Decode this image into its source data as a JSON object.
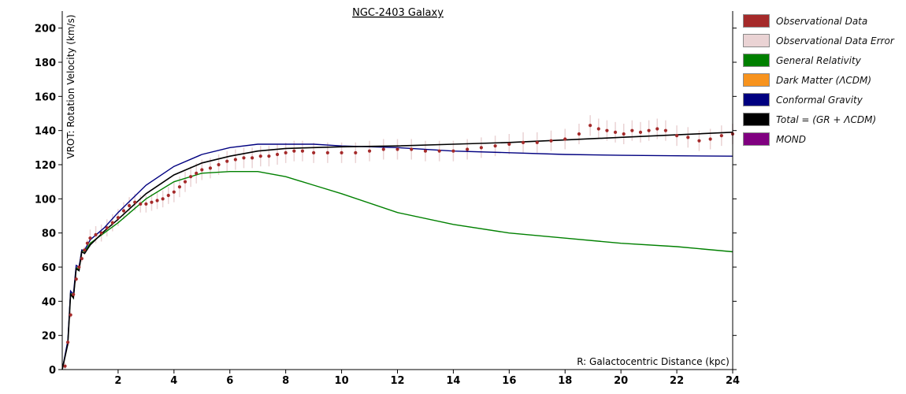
{
  "chart_data": {
    "type": "line",
    "title": "NGC-2403 Galaxy",
    "xlabel": "R: Galactocentric Distance (kpc)",
    "ylabel": "VROT: Rotation Velocity (km/s)",
    "xlim": [
      0,
      24
    ],
    "ylim": [
      0,
      210
    ],
    "xticks": [
      2,
      4,
      6,
      8,
      10,
      12,
      14,
      16,
      18,
      20,
      22,
      24
    ],
    "yticks": [
      0,
      20,
      40,
      60,
      80,
      100,
      120,
      140,
      160,
      180,
      200
    ],
    "grid": false,
    "legend_position": "right",
    "legend": [
      {
        "label": "Observational Data",
        "color": "#a52a2a"
      },
      {
        "label": "Observational Data Error",
        "color": "#ead3d4"
      },
      {
        "label": "General Relativity",
        "color": "#008000"
      },
      {
        "label": "Dark Matter (ΛCDM)",
        "color": "#f7931e"
      },
      {
        "label": "Conformal Gravity",
        "color": "#000080"
      },
      {
        "label": "Total = (GR + ΛCDM)",
        "color": "#000000"
      },
      {
        "label": "MOND",
        "color": "#800080"
      }
    ],
    "series": [
      {
        "name": "Observational Data",
        "color": "#a52a2a",
        "x": [
          0.1,
          0.2,
          0.3,
          0.4,
          0.5,
          0.6,
          0.7,
          0.8,
          0.9,
          1.0,
          1.2,
          1.4,
          1.6,
          1.8,
          2.0,
          2.2,
          2.4,
          2.6,
          2.8,
          3.0,
          3.2,
          3.4,
          3.6,
          3.8,
          4.0,
          4.2,
          4.4,
          4.6,
          4.8,
          5.0,
          5.3,
          5.6,
          5.9,
          6.2,
          6.5,
          6.8,
          7.1,
          7.4,
          7.7,
          8.0,
          8.3,
          8.6,
          9.0,
          9.5,
          10.0,
          10.5,
          11.0,
          11.5,
          12.0,
          12.5,
          13.0,
          13.5,
          14.0,
          14.5,
          15.0,
          15.5,
          16.0,
          16.5,
          17.0,
          17.5,
          18.0,
          18.5,
          18.9,
          19.2,
          19.5,
          19.8,
          20.1,
          20.4,
          20.7,
          21.0,
          21.3,
          21.6,
          22.0,
          22.4,
          22.8,
          23.2,
          23.6,
          24.0
        ],
        "values": [
          2,
          16,
          32,
          44,
          53,
          60,
          65,
          70,
          74,
          77,
          79,
          80,
          83,
          86,
          89,
          93,
          96,
          98,
          97,
          97,
          98,
          99,
          100,
          102,
          104,
          107,
          110,
          113,
          115,
          117,
          118,
          120,
          122,
          123,
          124,
          124,
          125,
          125,
          126,
          127,
          128,
          128,
          127,
          127,
          127,
          127,
          128,
          129,
          129,
          129,
          128,
          128,
          128,
          129,
          130,
          131,
          132,
          133,
          133,
          134,
          135,
          138,
          143,
          141,
          140,
          139,
          138,
          140,
          139,
          140,
          141,
          140,
          137,
          136,
          134,
          135,
          137,
          138
        ]
      },
      {
        "name": "General Relativity",
        "color": "#008000",
        "x": [
          0,
          0.2,
          0.3,
          0.4,
          0.5,
          0.6,
          0.7,
          0.8,
          1.0,
          1.5,
          2.0,
          3.0,
          4.0,
          5.0,
          6.0,
          6.5,
          7.0,
          8.0,
          9.0,
          10.0,
          12.0,
          14.0,
          16.0,
          18.0,
          20.0,
          22.0,
          24.0
        ],
        "values": [
          0,
          16,
          45,
          42,
          60,
          58,
          70,
          69,
          74,
          80,
          86,
          100,
          110,
          115,
          116,
          116,
          116,
          113,
          108,
          103,
          92,
          85,
          80,
          77,
          74,
          72,
          69
        ]
      },
      {
        "name": "Conformal Gravity",
        "color": "#000080",
        "x": [
          0,
          0.2,
          0.3,
          0.4,
          0.5,
          0.6,
          0.7,
          0.8,
          1.0,
          1.5,
          2.0,
          3.0,
          4.0,
          5.0,
          6.0,
          7.0,
          8.0,
          9.0,
          10.0,
          12.0,
          14.0,
          16.0,
          18.0,
          20.0,
          22.0,
          24.0
        ],
        "values": [
          0,
          17,
          46,
          44,
          61,
          60,
          70,
          70,
          76,
          83,
          92,
          108,
          119,
          126,
          130,
          132,
          132,
          132,
          131,
          130,
          128,
          127,
          126,
          125.5,
          125.2,
          125
        ]
      },
      {
        "name": "Total = (GR + ΛCDM)",
        "color": "#000000",
        "x": [
          0,
          0.2,
          0.3,
          0.4,
          0.5,
          0.6,
          0.7,
          0.8,
          1.0,
          1.5,
          2.0,
          3.0,
          4.0,
          5.0,
          6.0,
          7.0,
          8.0,
          9.0,
          10.0,
          12.0,
          14.0,
          16.0,
          18.0,
          20.0,
          22.0,
          24.0
        ],
        "values": [
          0,
          15,
          44,
          42,
          59,
          58,
          69,
          68,
          73,
          81,
          88,
          103,
          114,
          121,
          125,
          128,
          129.5,
          130,
          130.5,
          131,
          132,
          133,
          134.5,
          136,
          137.5,
          139
        ]
      }
    ]
  }
}
